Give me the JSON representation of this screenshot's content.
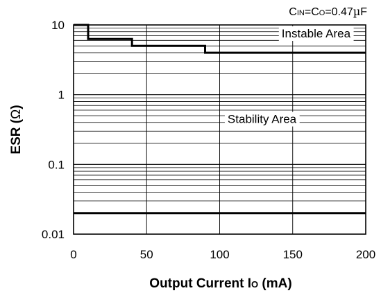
{
  "chart_data": {
    "type": "line",
    "title": "",
    "condition": {
      "c1": "C",
      "s1": "IN",
      "c2": "=C",
      "s2": "O",
      "c3": "=0.47",
      "mu": "µ",
      "c4": "F"
    },
    "xlabel": {
      "main": "Output Current I",
      "sub": "O",
      "unit": " (mA)"
    },
    "ylabel": {
      "main": "ESR (",
      "omega": "Ω",
      "close": ")"
    },
    "xlim": [
      0,
      200
    ],
    "ylim": [
      0.01,
      10
    ],
    "yscale": "log",
    "x_ticks": [
      0,
      50,
      100,
      150,
      200
    ],
    "x_tick_labels": [
      "0",
      "50",
      "100",
      "150",
      "200"
    ],
    "y_ticks": [
      0.01,
      0.1,
      1,
      10
    ],
    "y_tick_labels": [
      "0.01",
      "0.1",
      "1",
      "10"
    ],
    "grid": true,
    "series": [
      {
        "role": "upper-boundary",
        "x": [
          0,
          10,
          10,
          40,
          40,
          90,
          90,
          200
        ],
        "y": [
          10,
          10,
          6.3,
          6.3,
          5,
          5,
          4,
          4
        ]
      },
      {
        "role": "lower-boundary",
        "x": [
          0,
          200
        ],
        "y": [
          0.02,
          0.02
        ]
      }
    ],
    "annotations": [
      {
        "text": "Instable Area",
        "x": 166,
        "y": 7.6
      },
      {
        "text": "Stability Area",
        "x": 129,
        "y": 0.45
      }
    ]
  }
}
